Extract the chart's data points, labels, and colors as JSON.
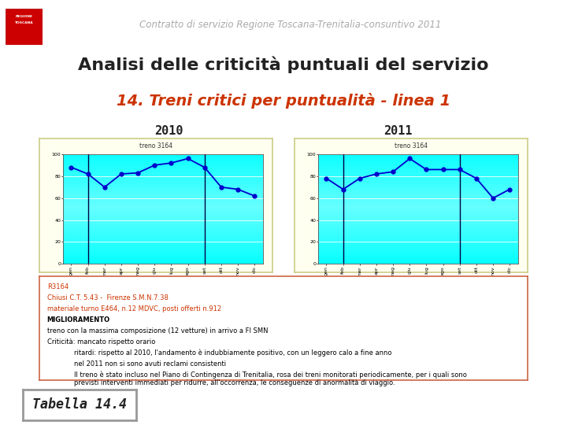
{
  "title_header": "Contratto di servizio Regione Toscana-Trenitalia-consuntivo 2011",
  "title_main": "Analisi delle criticità puntuali del servizio",
  "title_sub": "14. Treni critici per puntualità - linea 1",
  "chart_title_2010": "2010",
  "chart_title_2011": "2011",
  "series_label": "treno 3164",
  "months": [
    "gen",
    "feb",
    "mar",
    "apr",
    "mag",
    "giu",
    "lug",
    "ago",
    "set",
    "ott",
    "nov",
    "dic"
  ],
  "data_2010": [
    88,
    82,
    70,
    82,
    83,
    90,
    92,
    96,
    88,
    70,
    68,
    62
  ],
  "data_2011": [
    78,
    68,
    78,
    82,
    84,
    96,
    86,
    86,
    86,
    78,
    60,
    68
  ],
  "vlines_2010": [
    1,
    8
  ],
  "vlines_2011": [
    1,
    8
  ],
  "ylim": [
    0,
    100
  ],
  "bg_outer": "#fffff0",
  "bg_chart_top": "#00ffff",
  "bg_chart_bot": "#aaffff",
  "line_color": "#0000cc",
  "vline_color": "#000080",
  "info_box_text": [
    {
      "text": "R3164",
      "color": "#cc3300",
      "bold": false,
      "indent": 0
    },
    {
      "text": "Chiusi C.T. 5.43 -  Firenze S.M.N.7.38",
      "color": "#cc3300",
      "bold": false,
      "indent": 0
    },
    {
      "text": "materiale turno E464, n.12 MDVC, posti offerti n.912",
      "color": "#cc3300",
      "bold": false,
      "indent": 0
    },
    {
      "text": "MIGLIORAMENTO",
      "color": "#000000",
      "bold": true,
      "indent": 0
    },
    {
      "text": "treno con la massima composizione (12 vetture) in arrivo a FI SMN",
      "color": "#000000",
      "bold": false,
      "indent": 0
    },
    {
      "text": "Criticità: mancato rispetto orario",
      "color": "#000000",
      "bold": false,
      "indent": 0
    },
    {
      "text": "ritardi: rispetto al 2010, l'andamento è indubbiamente positivo, con un leggero calo a fine anno",
      "color": "#000000",
      "bold": false,
      "indent": 1
    },
    {
      "text": "nel 2011 non si sono avuti reclami consistenti",
      "color": "#000000",
      "bold": false,
      "indent": 1
    },
    {
      "text": "Il treno è stato incluso nel Piano di Contingenza di Trenitalia, rosa dei treni monitorati periodicamente, per i quali sono\nprevisti interventi immediati per ridurre, all'occorrenza, le conseguenze di anormalità di viaggio.",
      "color": "#000000",
      "bold": false,
      "indent": 1
    }
  ],
  "tabella_label": "Tabella 14.4",
  "header_color": "#aaaaaa",
  "title_main_color": "#222222",
  "title_sub_color": "#cc3300"
}
